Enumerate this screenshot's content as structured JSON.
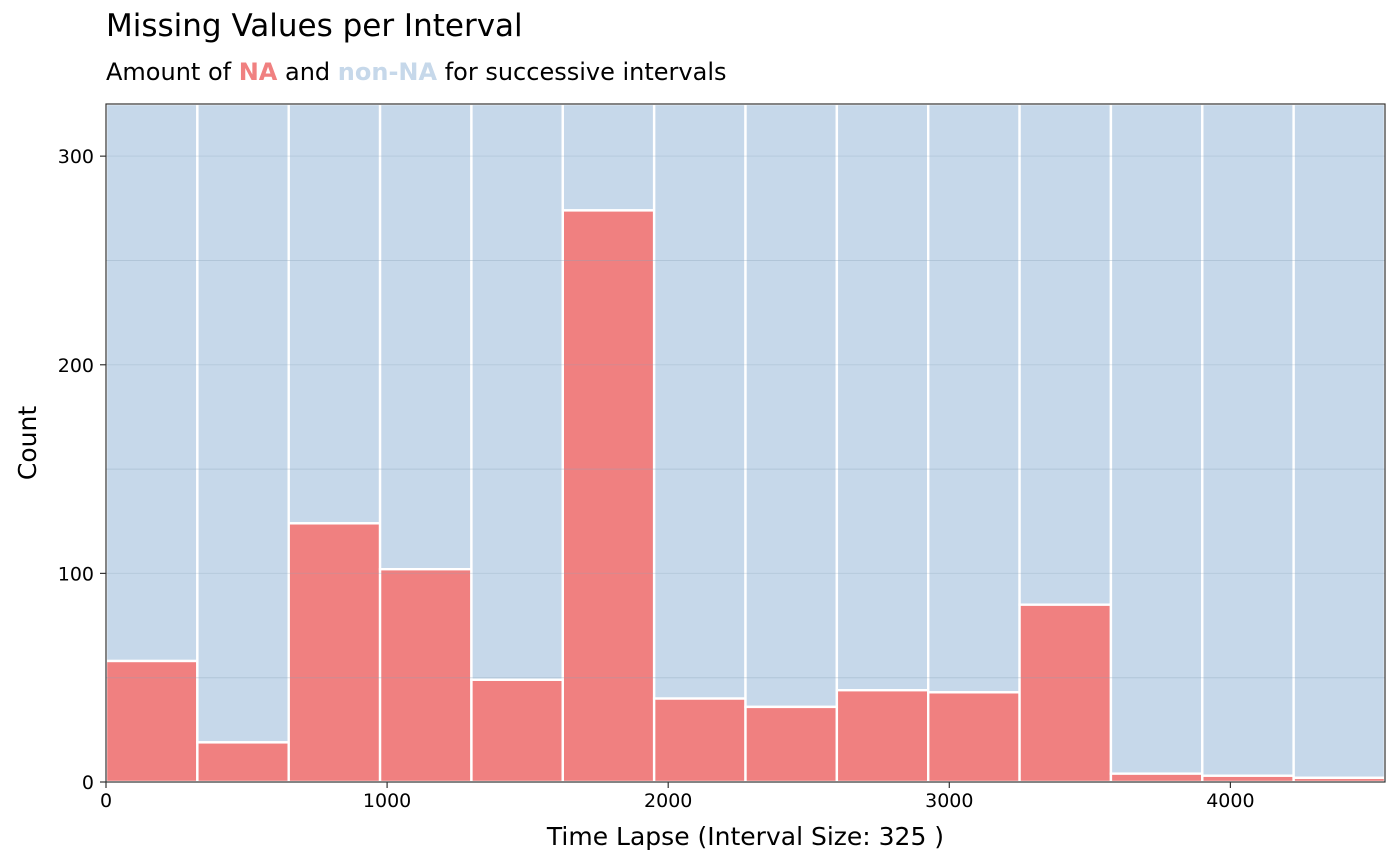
{
  "chart_data": {
    "type": "bar",
    "title": "Missing Values per Interval",
    "subtitle": {
      "prefix": "Amount of ",
      "na_label": "NA",
      "middle": " and ",
      "non_na_label": "non-NA",
      "suffix": " for successive intervals"
    },
    "xlabel": "Time Lapse (Interval Size: 325 )",
    "ylabel": "Count",
    "interval_size": 325,
    "x_start": 0,
    "xlim": [
      0,
      4550
    ],
    "ylim": [
      0,
      325
    ],
    "x_ticks": [
      0,
      1000,
      2000,
      3000,
      4000
    ],
    "y_ticks": [
      0,
      100,
      200,
      300
    ],
    "y_minor_gridlines": [
      50,
      150,
      250
    ],
    "grid": true,
    "series": [
      {
        "name": "NA",
        "color": "#F08080",
        "values": [
          58,
          19,
          124,
          102,
          49,
          274,
          40,
          36,
          44,
          43,
          85,
          4,
          3,
          2
        ]
      },
      {
        "name": "non-NA",
        "color": "#C6D8EA",
        "values": [
          267,
          306,
          201,
          223,
          276,
          51,
          285,
          289,
          281,
          282,
          240,
          321,
          322,
          323
        ]
      }
    ]
  }
}
